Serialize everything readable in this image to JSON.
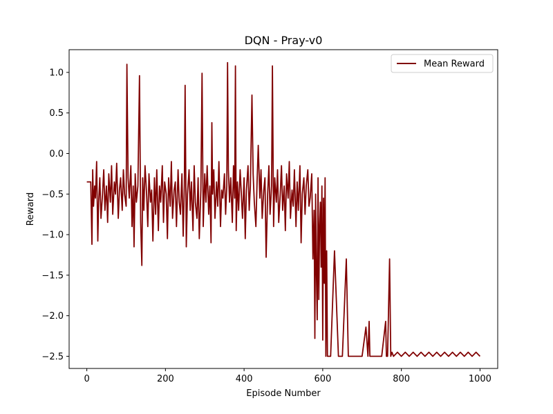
{
  "chart_data": {
    "type": "line",
    "title": "DQN - Pray-v0",
    "xlabel": "Episode Number",
    "ylabel": "Reward",
    "xlim": [
      -45,
      1045
    ],
    "ylim": [
      -2.65,
      1.28
    ],
    "xticks": [
      0,
      200,
      400,
      600,
      800,
      1000
    ],
    "xtick_labels": [
      "0",
      "200",
      "400",
      "600",
      "800",
      "1000"
    ],
    "yticks": [
      -2.5,
      -2.0,
      -1.5,
      -1.0,
      -0.5,
      0.0,
      0.5,
      1.0
    ],
    "ytick_labels": [
      "−2.5",
      "−2.0",
      "−1.5",
      "−1.0",
      "−0.5",
      "0.0",
      "0.5",
      "1.0"
    ],
    "grid": false,
    "legend_position": "top-right",
    "series": [
      {
        "name": "Mean Reward",
        "color": "#800000",
        "x": [
          0,
          10,
          13,
          15,
          17,
          20,
          22,
          25,
          28,
          30,
          33,
          36,
          40,
          43,
          46,
          50,
          53,
          56,
          60,
          63,
          66,
          70,
          73,
          76,
          80,
          83,
          86,
          90,
          93,
          96,
          100,
          102,
          105,
          108,
          112,
          115,
          118,
          120,
          123,
          126,
          130,
          134,
          137,
          140,
          142,
          145,
          148,
          152,
          155,
          158,
          162,
          165,
          168,
          172,
          175,
          178,
          182,
          185,
          188,
          192,
          195,
          198,
          202,
          205,
          208,
          212,
          215,
          218,
          222,
          225,
          228,
          232,
          235,
          238,
          242,
          245,
          248,
          250,
          253,
          256,
          260,
          263,
          266,
          270,
          273,
          276,
          280,
          283,
          286,
          290,
          293,
          296,
          300,
          303,
          306,
          310,
          313,
          316,
          318,
          320,
          323,
          326,
          330,
          333,
          336,
          340,
          343,
          346,
          350,
          353,
          356,
          358,
          360,
          363,
          366,
          370,
          373,
          376,
          378,
          380,
          383,
          386,
          390,
          393,
          396,
          400,
          403,
          406,
          410,
          413,
          416,
          420,
          423,
          426,
          430,
          433,
          436,
          440,
          443,
          446,
          450,
          453,
          456,
          460,
          463,
          466,
          470,
          472,
          475,
          478,
          482,
          485,
          488,
          492,
          495,
          498,
          502,
          505,
          508,
          512,
          515,
          518,
          522,
          525,
          528,
          532,
          535,
          538,
          542,
          545,
          548,
          552,
          555,
          558,
          562,
          565,
          568,
          572,
          575,
          578,
          580,
          582,
          584,
          586,
          588,
          590,
          592,
          594,
          596,
          598,
          600,
          602,
          604,
          606,
          608,
          610,
          612,
          614,
          616,
          620,
          630,
          640,
          643,
          646,
          650,
          660,
          665,
          668,
          671,
          675,
          680,
          690,
          700,
          710,
          715,
          718,
          720,
          724,
          730,
          740,
          750,
          760,
          762,
          765,
          770,
          773,
          776,
          780,
          790,
          800,
          810,
          820,
          830,
          840,
          850,
          860,
          870,
          880,
          890,
          900,
          910,
          920,
          930,
          940,
          950,
          960,
          970,
          980,
          990,
          1000
        ],
        "y": [
          -0.35,
          -0.35,
          -1.12,
          -0.2,
          -0.65,
          -0.4,
          -0.55,
          -0.1,
          -1.08,
          -0.6,
          -0.3,
          -0.8,
          -0.5,
          -0.2,
          -0.7,
          -0.4,
          -0.85,
          -0.25,
          -0.6,
          -0.15,
          -0.75,
          -0.35,
          -0.5,
          -0.12,
          -0.8,
          -0.45,
          -0.3,
          -0.7,
          -0.2,
          -0.5,
          -0.65,
          1.1,
          -0.3,
          -0.55,
          -0.15,
          -0.9,
          -0.4,
          -1.15,
          -0.25,
          -0.6,
          -0.4,
          0.96,
          -0.85,
          -1.38,
          -0.3,
          -0.7,
          -0.15,
          -0.5,
          -0.9,
          -0.25,
          -0.6,
          -0.45,
          -1.08,
          -0.3,
          -0.75,
          -0.2,
          -0.95,
          -0.4,
          -0.6,
          -0.15,
          -0.85,
          -0.35,
          -0.5,
          -1.05,
          -0.3,
          -0.65,
          -0.1,
          -0.8,
          -0.45,
          -0.35,
          -0.9,
          -0.2,
          -0.6,
          -0.75,
          -0.25,
          -1.02,
          -0.4,
          0.84,
          -1.15,
          -0.5,
          -0.2,
          -0.7,
          -0.35,
          -0.95,
          -0.15,
          -0.6,
          -0.8,
          -0.3,
          -1.05,
          -0.45,
          0.99,
          -0.9,
          -0.25,
          -0.6,
          -0.15,
          -0.75,
          -0.4,
          -1.1,
          0.38,
          -0.5,
          -0.2,
          -0.8,
          -0.35,
          -0.65,
          -0.1,
          -0.9,
          -0.45,
          -0.55,
          -0.25,
          -0.75,
          -0.4,
          1.12,
          -0.2,
          -0.6,
          -0.3,
          -0.85,
          -0.15,
          -0.55,
          1.08,
          -0.95,
          -0.35,
          -0.7,
          -0.2,
          -0.5,
          -0.8,
          -0.3,
          -1.05,
          -0.45,
          -0.15,
          -0.7,
          -0.4,
          0.72,
          -0.25,
          -0.6,
          -0.9,
          -0.35,
          0.1,
          -0.55,
          -0.2,
          -0.8,
          -0.45,
          -0.3,
          -1.28,
          -0.5,
          -0.15,
          -0.75,
          -0.4,
          1.08,
          -0.9,
          -0.3,
          -0.6,
          -0.2,
          -0.85,
          -0.5,
          -0.15,
          -0.7,
          -0.4,
          -0.95,
          -0.25,
          -0.55,
          -0.1,
          -0.8,
          -0.45,
          -0.65,
          -0.2,
          -0.9,
          -0.35,
          -0.7,
          -0.15,
          -1.1,
          -0.5,
          -0.3,
          -0.75,
          -0.4,
          -0.2,
          -0.65,
          -0.55,
          -0.25,
          -1.3,
          -0.7,
          -2.28,
          -0.5,
          -1.5,
          -2.05,
          -0.3,
          -1.8,
          -0.9,
          -0.6,
          -1.4,
          -0.4,
          -2.3,
          -0.55,
          -1.6,
          -0.3,
          -2.5,
          -1.2,
          -2.5,
          -2.5,
          -2.5,
          -2.5,
          -1.2,
          -2.5,
          -2.5,
          -2.5,
          -2.5,
          -1.3,
          -2.5,
          -2.5,
          -2.5,
          -2.5,
          -2.5,
          -2.5,
          -2.5,
          -2.14,
          -2.5,
          -2.07,
          -2.5,
          -2.5,
          -2.5,
          -2.5,
          -2.5,
          -2.07,
          -2.5,
          -2.5,
          -1.3,
          -2.5,
          -2.45,
          -2.5,
          -2.45,
          -2.5,
          -2.45,
          -2.5,
          -2.45,
          -2.5,
          -2.45,
          -2.5,
          -2.45,
          -2.5,
          -2.45,
          -2.5,
          -2.45,
          -2.5,
          -2.45,
          -2.5,
          -2.45,
          -2.5,
          -2.45,
          -2.5,
          -2.45,
          -2.5
        ]
      }
    ]
  }
}
